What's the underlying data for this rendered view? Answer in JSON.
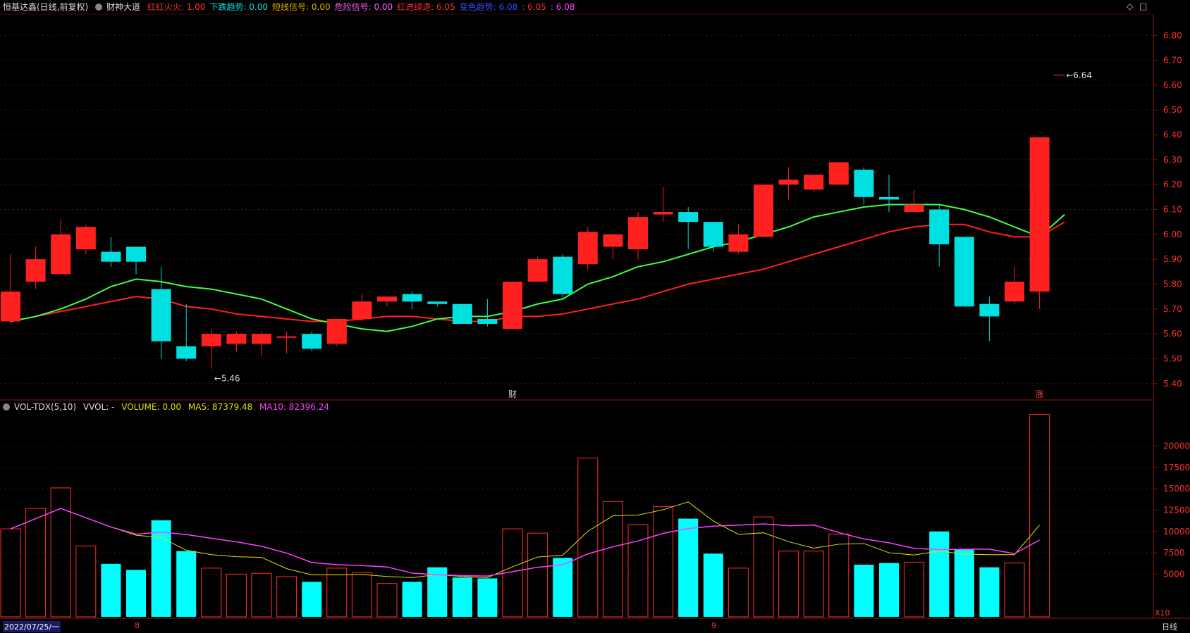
{
  "header": {
    "title": "恒基达鑫(日线,前复权)",
    "indicator": "财神大道",
    "items": [
      {
        "label": "红红火火:",
        "value": "1.00",
        "color": "#ff3030"
      },
      {
        "label": "下跌趋势:",
        "value": "0.00",
        "color": "#00e5e5"
      },
      {
        "label": "短线信号:",
        "value": "0.00",
        "color": "#e0b000"
      },
      {
        "label": "危险信号:",
        "value": "0.00",
        "color": "#ff60ff"
      },
      {
        "label": "红进绿退:",
        "value": "6.05",
        "color": "#ff3030"
      },
      {
        "label": "变色趋势:",
        "value": "6.08",
        "color": "#3050ff"
      },
      {
        "label": ":",
        "value": "6.05",
        "color": "#ff3030"
      },
      {
        "label": ":",
        "value": "6.08",
        "color": "#ff40ff"
      }
    ],
    "right_icons": [
      "diamond-icon",
      "square-icon"
    ]
  },
  "vol_header": {
    "title": "VOL-TDX(5,10)",
    "vvol": "VVOL: -",
    "volume": "VOLUME: 0.00",
    "ma5": "MA5: 87379.48",
    "ma10": "MA10: 82396.24"
  },
  "markers": {
    "low_label": "5.46",
    "high_label": "6.64",
    "cai_label": "财",
    "zhang_label": "涨",
    "x10_label": "X10"
  },
  "bottom": {
    "date_label": "2022/07/25/一",
    "month_labels": [
      "8",
      "9"
    ],
    "period": "日线"
  },
  "chart_data": {
    "type": "candlestick",
    "price_axis": {
      "ticks": [
        5.4,
        5.5,
        5.6,
        5.7,
        5.8,
        5.9,
        6.0,
        6.1,
        6.2,
        6.3,
        6.4,
        6.5,
        6.6,
        6.7,
        6.8
      ],
      "ylim": [
        5.34,
        6.88
      ]
    },
    "volume_axis": {
      "ticks": [
        5000,
        7500,
        10000,
        12500,
        15000,
        17500,
        20000
      ],
      "ylim": [
        0,
        24000
      ]
    },
    "candles": [
      {
        "o": 5.65,
        "c": 5.77,
        "h": 5.92,
        "l": 5.64,
        "v": 10300
      },
      {
        "o": 5.81,
        "c": 5.9,
        "h": 5.95,
        "l": 5.78,
        "v": 12700
      },
      {
        "o": 5.84,
        "c": 6.0,
        "h": 6.06,
        "l": 5.84,
        "v": 15100
      },
      {
        "o": 5.94,
        "c": 6.03,
        "h": 6.04,
        "l": 5.92,
        "v": 8300
      },
      {
        "o": 5.93,
        "c": 5.89,
        "h": 5.99,
        "l": 5.87,
        "v": 6200
      },
      {
        "o": 5.95,
        "c": 5.89,
        "h": 5.95,
        "l": 5.84,
        "v": 5500
      },
      {
        "o": 5.78,
        "c": 5.57,
        "h": 5.87,
        "l": 5.5,
        "v": 11300
      },
      {
        "o": 5.55,
        "c": 5.5,
        "h": 5.72,
        "l": 5.49,
        "v": 7700
      },
      {
        "o": 5.55,
        "c": 5.6,
        "h": 5.62,
        "l": 5.46,
        "v": 5700
      },
      {
        "o": 5.56,
        "c": 5.6,
        "h": 5.61,
        "l": 5.53,
        "v": 5000
      },
      {
        "o": 5.56,
        "c": 5.6,
        "h": 5.61,
        "l": 5.51,
        "v": 5100
      },
      {
        "o": 5.59,
        "c": 5.59,
        "h": 5.61,
        "l": 5.52,
        "v": 4700
      },
      {
        "o": 5.6,
        "c": 5.54,
        "h": 5.61,
        "l": 5.53,
        "v": 4100
      },
      {
        "o": 5.56,
        "c": 5.66,
        "h": 5.66,
        "l": 5.55,
        "v": 5700
      },
      {
        "o": 5.66,
        "c": 5.73,
        "h": 5.76,
        "l": 5.65,
        "v": 5200
      },
      {
        "o": 5.73,
        "c": 5.75,
        "h": 5.75,
        "l": 5.71,
        "v": 3900
      },
      {
        "o": 5.76,
        "c": 5.73,
        "h": 5.77,
        "l": 5.7,
        "v": 4100
      },
      {
        "o": 5.73,
        "c": 5.72,
        "h": 5.73,
        "l": 5.71,
        "v": 5800
      },
      {
        "o": 5.72,
        "c": 5.64,
        "h": 5.72,
        "l": 5.64,
        "v": 4600
      },
      {
        "o": 5.66,
        "c": 5.64,
        "h": 5.74,
        "l": 5.63,
        "v": 4500
      },
      {
        "o": 5.62,
        "c": 5.81,
        "h": 5.81,
        "l": 5.62,
        "v": 10300
      },
      {
        "o": 5.81,
        "c": 5.9,
        "h": 5.91,
        "l": 5.81,
        "v": 9800
      },
      {
        "o": 5.91,
        "c": 5.76,
        "h": 5.92,
        "l": 5.74,
        "v": 6900
      },
      {
        "o": 5.88,
        "c": 6.01,
        "h": 6.03,
        "l": 5.86,
        "v": 18600
      },
      {
        "o": 5.95,
        "c": 6.0,
        "h": 6.0,
        "l": 5.9,
        "v": 13500
      },
      {
        "o": 5.94,
        "c": 6.07,
        "h": 6.09,
        "l": 5.9,
        "v": 10800
      },
      {
        "o": 6.08,
        "c": 6.09,
        "h": 6.19,
        "l": 6.05,
        "v": 12900
      },
      {
        "o": 6.09,
        "c": 6.05,
        "h": 6.11,
        "l": 5.94,
        "v": 11500
      },
      {
        "o": 6.05,
        "c": 5.95,
        "h": 6.05,
        "l": 5.93,
        "v": 7400
      },
      {
        "o": 5.93,
        "c": 6.0,
        "h": 6.04,
        "l": 5.92,
        "v": 5700
      },
      {
        "o": 5.99,
        "c": 6.2,
        "h": 6.2,
        "l": 5.99,
        "v": 11700
      },
      {
        "o": 6.2,
        "c": 6.22,
        "h": 6.27,
        "l": 6.14,
        "v": 7700
      },
      {
        "o": 6.18,
        "c": 6.24,
        "h": 6.24,
        "l": 6.17,
        "v": 7700
      },
      {
        "o": 6.2,
        "c": 6.29,
        "h": 6.29,
        "l": 6.2,
        "v": 9700
      },
      {
        "o": 6.26,
        "c": 6.15,
        "h": 6.27,
        "l": 6.12,
        "v": 6100
      },
      {
        "o": 6.15,
        "c": 6.14,
        "h": 6.24,
        "l": 6.09,
        "v": 6300
      },
      {
        "o": 6.09,
        "c": 6.12,
        "h": 6.18,
        "l": 6.09,
        "v": 6400
      },
      {
        "o": 6.1,
        "c": 5.96,
        "h": 6.12,
        "l": 5.87,
        "v": 10000
      },
      {
        "o": 5.99,
        "c": 5.71,
        "h": 5.99,
        "l": 5.71,
        "v": 7900
      },
      {
        "o": 5.72,
        "c": 5.67,
        "h": 5.75,
        "l": 5.57,
        "v": 5800
      },
      {
        "o": 5.73,
        "c": 5.81,
        "h": 5.87,
        "l": 5.72,
        "v": 6300
      },
      {
        "o": 5.77,
        "c": 6.39,
        "h": 6.39,
        "l": 5.7,
        "v": 23700
      },
      {
        "o": 6.64,
        "c": 6.64,
        "h": 6.64,
        "l": 6.64,
        "v": 0
      }
    ],
    "lines": [
      {
        "name": "红进绿退",
        "color": "#ff2020",
        "values": [
          5.65,
          5.67,
          5.69,
          5.71,
          5.73,
          5.75,
          5.74,
          5.71,
          5.7,
          5.68,
          5.67,
          5.66,
          5.65,
          5.65,
          5.66,
          5.67,
          5.67,
          5.66,
          5.65,
          5.65,
          5.67,
          5.67,
          5.68,
          5.7,
          5.72,
          5.74,
          5.77,
          5.8,
          5.82,
          5.84,
          5.86,
          5.89,
          5.92,
          5.95,
          5.98,
          6.01,
          6.03,
          6.04,
          6.04,
          6.01,
          5.99,
          5.99,
          6.05
        ]
      },
      {
        "name": "变色趋势",
        "color": "#40ff40",
        "values": [
          5.65,
          5.67,
          5.7,
          5.74,
          5.79,
          5.82,
          5.81,
          5.79,
          5.78,
          5.76,
          5.74,
          5.7,
          5.66,
          5.64,
          5.62,
          5.61,
          5.63,
          5.66,
          5.67,
          5.67,
          5.69,
          5.72,
          5.74,
          5.8,
          5.83,
          5.87,
          5.89,
          5.92,
          5.95,
          5.97,
          6.0,
          6.03,
          6.07,
          6.09,
          6.11,
          6.12,
          6.12,
          6.12,
          6.1,
          6.07,
          6.03,
          5.99,
          6.08
        ]
      }
    ]
  }
}
